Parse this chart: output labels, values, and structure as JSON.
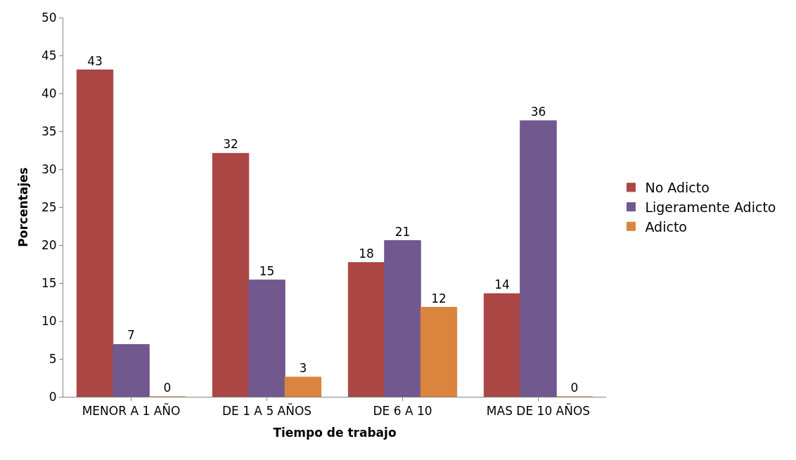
{
  "chart_data": {
    "type": "bar",
    "xlabel": "Tiempo de trabajo",
    "ylabel": "Porcentajes",
    "categories": [
      "MENOR A 1 AÑO",
      "DE 1 A 5 AÑOS",
      "DE 6 A 10",
      "MAS DE 10 AÑOS"
    ],
    "series": [
      {
        "name": "No Adicto",
        "color": "#aa4643",
        "values": [
          43.1,
          32.1,
          17.7,
          13.6
        ],
        "value_labels": [
          "43",
          "32",
          "18",
          "14"
        ]
      },
      {
        "name": "Ligeramente Adicto",
        "color": "#71588f",
        "values": [
          6.9,
          15.4,
          20.6,
          36.4
        ],
        "value_labels": [
          "7",
          "15",
          "21",
          "36"
        ]
      },
      {
        "name": "Adicto",
        "color": "#db843d",
        "values": [
          0,
          2.6,
          11.8,
          0
        ],
        "value_labels": [
          "0",
          "3",
          "12",
          "0"
        ]
      }
    ],
    "ylim": [
      0,
      50
    ],
    "yticks": [
      0,
      5,
      10,
      15,
      20,
      25,
      30,
      35,
      40,
      45,
      50
    ],
    "legend": "right"
  }
}
